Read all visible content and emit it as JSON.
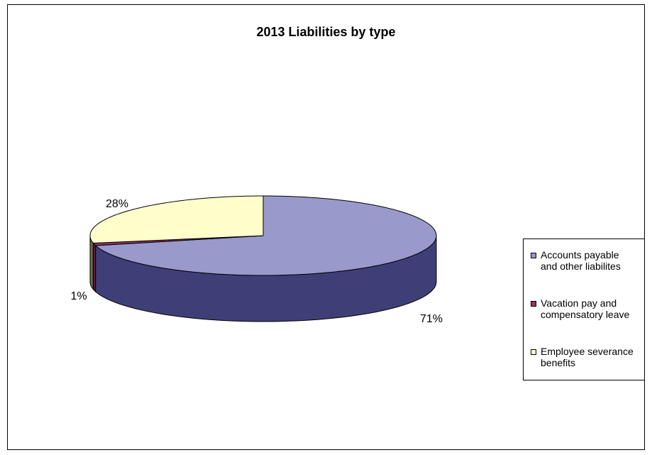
{
  "chart_data": {
    "type": "pie",
    "title": "2013 Liabilities by type",
    "categories": [
      "Accounts payable and other liabilites",
      "Vacation pay and compensatory leave",
      "Employee severance benefits"
    ],
    "values": [
      71,
      1,
      28
    ],
    "data_labels": [
      "71%",
      "1%",
      "28%"
    ],
    "colors": [
      "#9999cc",
      "#993366",
      "#ffffcc"
    ],
    "side_colors": [
      "#3f3f78",
      "#5a1a3a",
      "#6b6b4a"
    ],
    "legend_placement": "right",
    "legend": [
      {
        "lines": [
          "Accounts payable",
          "and other liabilites"
        ],
        "color": "#9999cc"
      },
      {
        "lines": [
          "Vacation pay and",
          "compensatory leave"
        ],
        "color": "#993366"
      },
      {
        "lines": [
          "Employee severance",
          "benefits"
        ],
        "color": "#ffffcc"
      }
    ]
  }
}
